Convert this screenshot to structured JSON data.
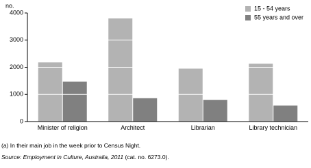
{
  "chart_data": {
    "type": "bar",
    "y_unit": "no.",
    "categories": [
      "Minister of religion",
      "Architect",
      "Librarian",
      "Library technician"
    ],
    "series": [
      {
        "name": "15 - 54 years",
        "color": "#b3b3b3",
        "values": [
          2180,
          3800,
          1950,
          2130
        ]
      },
      {
        "name": "55 years and over",
        "color": "#808080",
        "values": [
          1470,
          860,
          800,
          590
        ]
      }
    ],
    "ylim": [
      0,
      4000
    ],
    "yticks": [
      0,
      1000,
      2000,
      3000,
      4000
    ],
    "grid": true,
    "legend": "top-right",
    "footnote": "(a) In their main job in the week prior to Census Night.",
    "source": "Source: Employment in Culture, Australia, 2011",
    "source_cat": "(cat. no. 6273.0)."
  }
}
